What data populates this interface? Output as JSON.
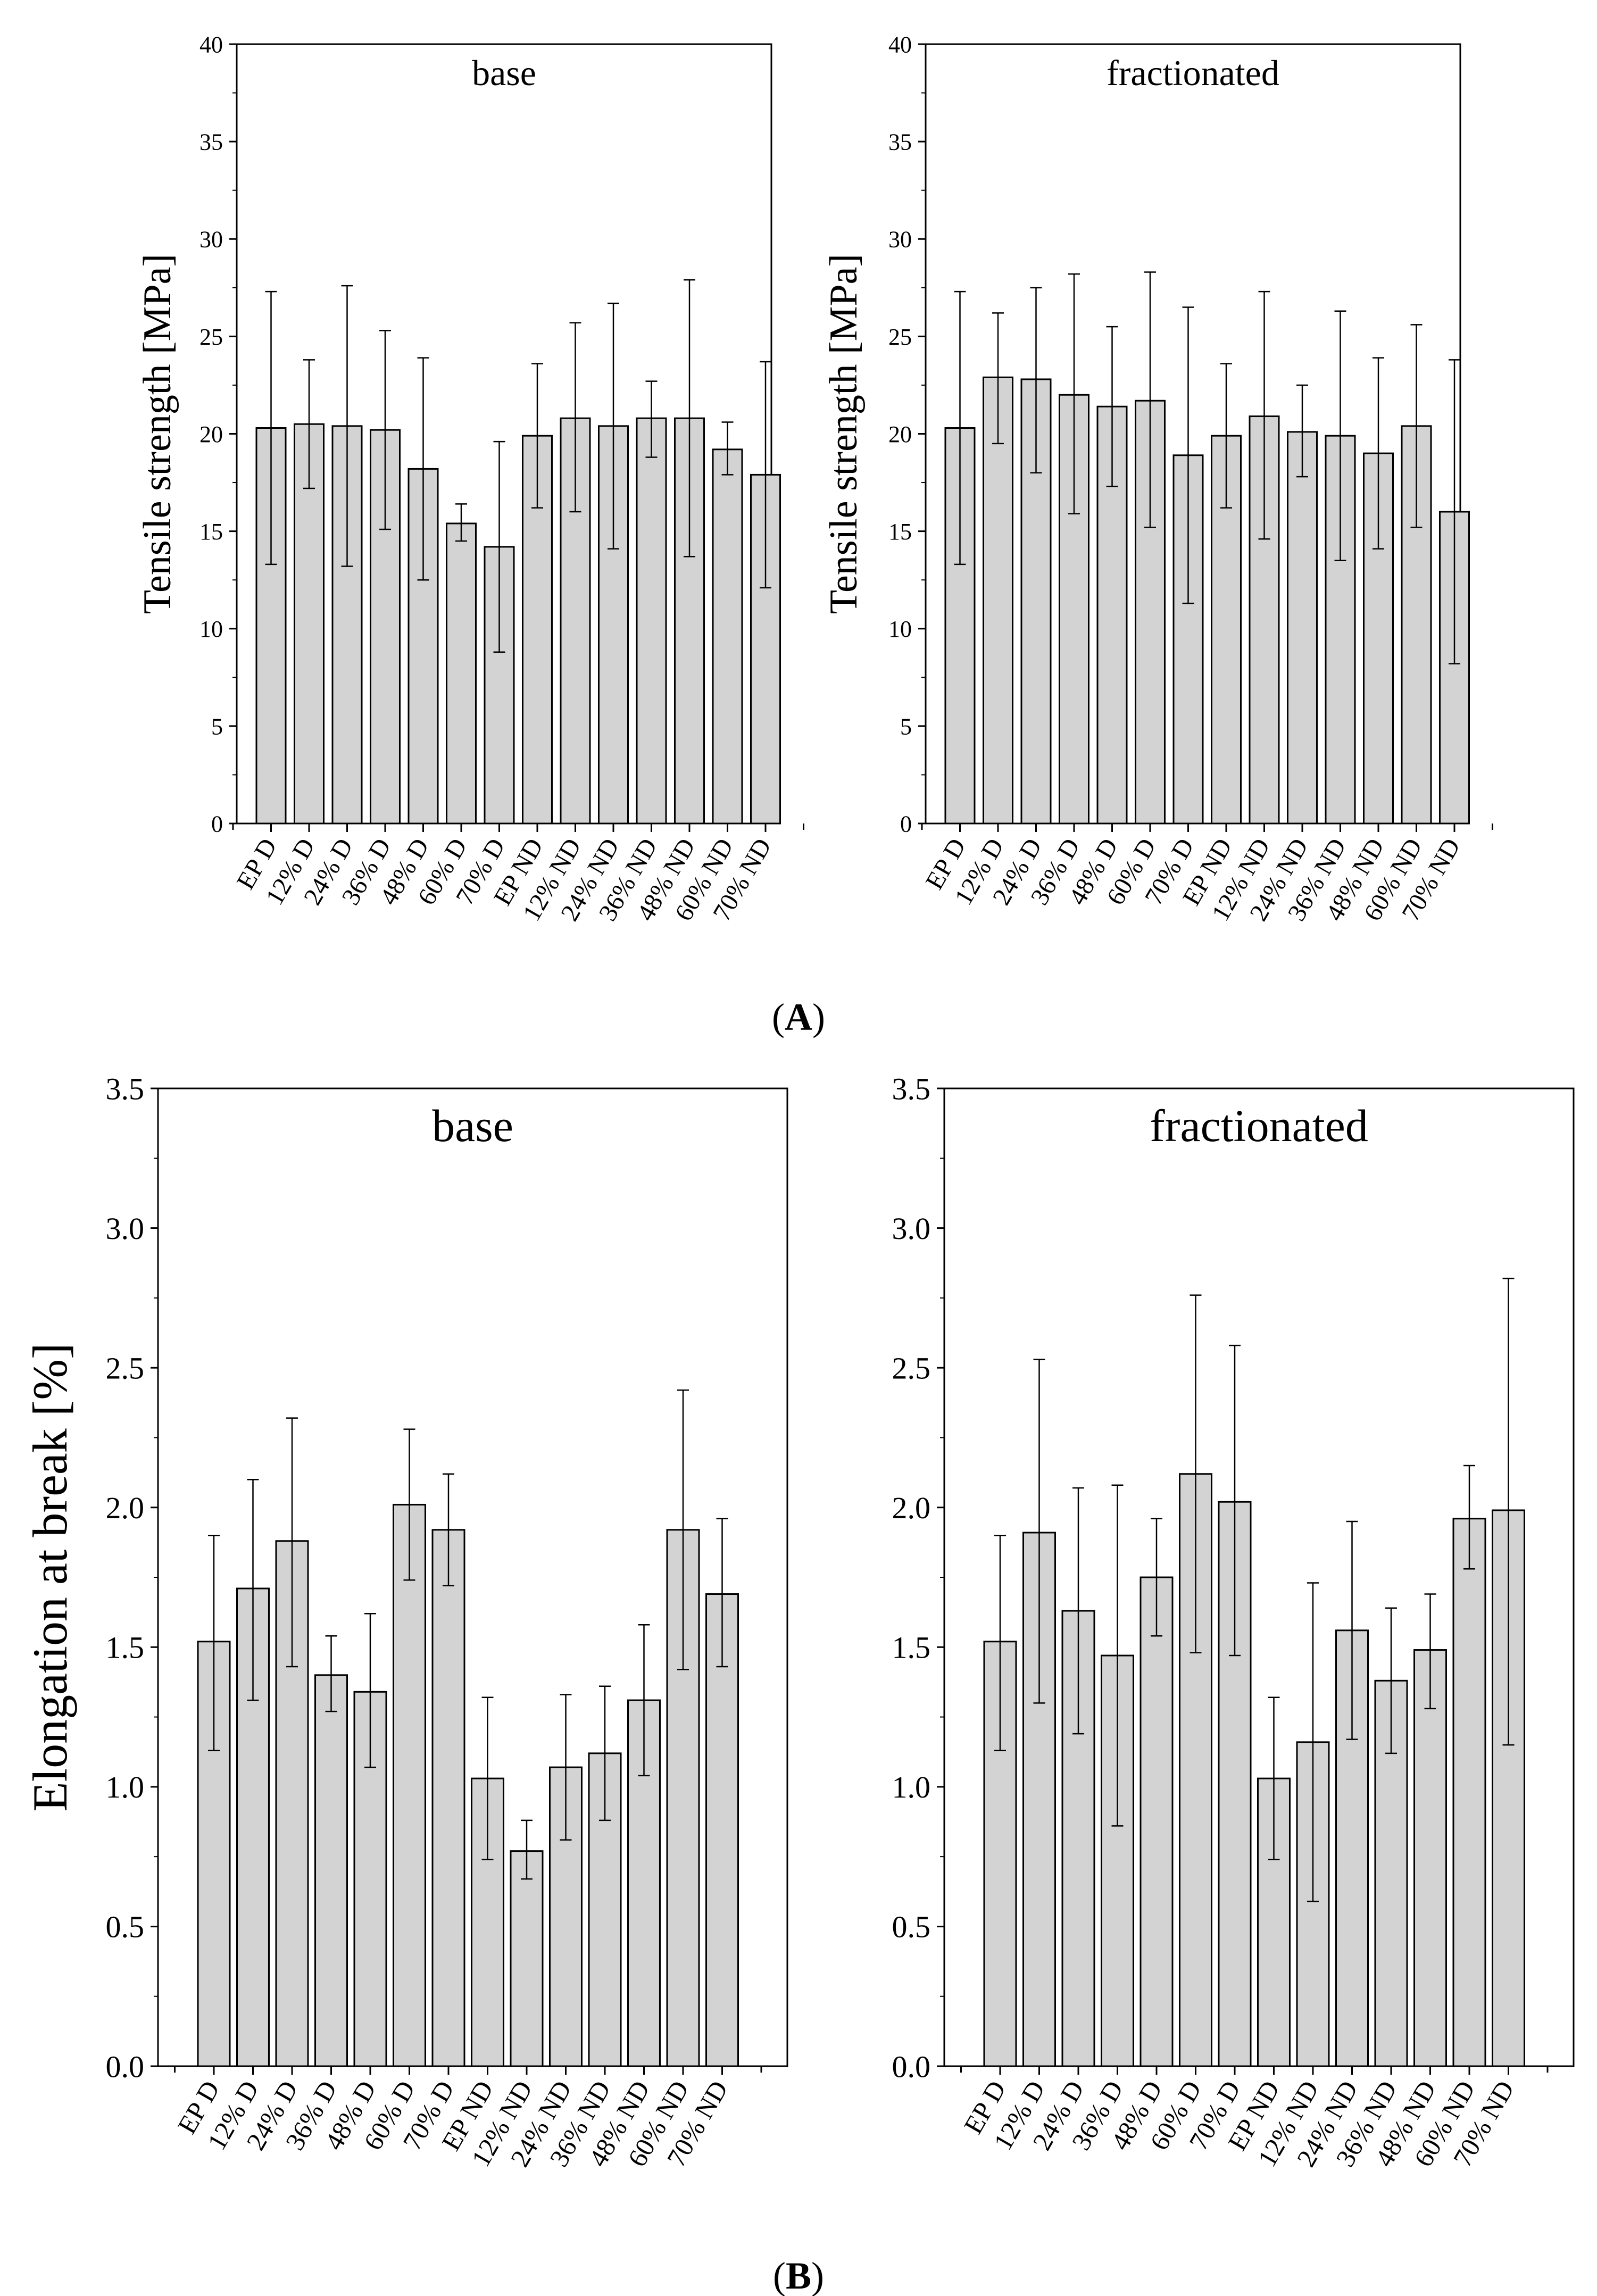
{
  "panel_labels": [
    "A",
    "B"
  ],
  "chart_data": [
    {
      "type": "bar",
      "title": "base",
      "ylabel": "Tensile strength [MPa]",
      "xlabel": "",
      "ylim": [
        0,
        40
      ],
      "yticks": [
        "0",
        "5",
        "10",
        "15",
        "20",
        "25",
        "30",
        "35",
        "40"
      ],
      "categories": [
        "EP D",
        "12% D",
        "24% D",
        "36% D",
        "48% D",
        "60% D",
        "70% D",
        "EP ND",
        "12% ND",
        "24% ND",
        "36% ND",
        "48% ND",
        "60% ND",
        "70% ND"
      ],
      "values": [
        20.3,
        20.5,
        20.4,
        20.2,
        18.2,
        15.4,
        14.2,
        19.9,
        20.8,
        20.4,
        20.8,
        20.8,
        19.2,
        17.9
      ],
      "err_high": [
        27.3,
        23.8,
        27.6,
        25.3,
        23.9,
        16.4,
        19.6,
        23.6,
        25.7,
        26.7,
        22.7,
        27.9,
        20.6,
        23.7
      ],
      "err_low": [
        13.3,
        17.2,
        13.2,
        15.1,
        12.5,
        14.5,
        8.8,
        16.2,
        16.0,
        14.1,
        18.8,
        13.7,
        17.9,
        12.1
      ],
      "bar_color": "#d3d3d3",
      "grid": false
    },
    {
      "type": "bar",
      "title": "fractionated",
      "ylabel": "Tensile strength [MPa]",
      "xlabel": "",
      "ylim": [
        0,
        40
      ],
      "yticks": [
        "0",
        "5",
        "10",
        "15",
        "20",
        "25",
        "30",
        "35",
        "40"
      ],
      "categories": [
        "EP D",
        "12% D",
        "24% D",
        "36% D",
        "48% D",
        "60% D",
        "70% D",
        "EP ND",
        "12% ND",
        "24% ND",
        "36% ND",
        "48% ND",
        "60% ND",
        "70% ND"
      ],
      "values": [
        20.3,
        22.9,
        22.8,
        22.0,
        21.4,
        21.7,
        18.9,
        19.9,
        20.9,
        20.1,
        19.9,
        19.0,
        20.4,
        16.0
      ],
      "err_high": [
        27.3,
        26.2,
        27.5,
        28.2,
        25.5,
        28.3,
        26.5,
        23.6,
        27.3,
        22.5,
        26.3,
        23.9,
        25.6,
        23.8
      ],
      "err_low": [
        13.3,
        19.5,
        18.0,
        15.9,
        17.3,
        15.2,
        11.3,
        16.2,
        14.6,
        17.8,
        13.5,
        14.1,
        15.2,
        8.2
      ],
      "bar_color": "#d3d3d3",
      "grid": false
    },
    {
      "type": "bar",
      "title": "base",
      "ylabel": "Elongation at break [%]",
      "xlabel": "",
      "ylim": [
        0,
        3.5
      ],
      "yticks": [
        "0.0",
        "0.5",
        "1.0",
        "1.5",
        "2.0",
        "2.5",
        "3.0",
        "3.5"
      ],
      "categories": [
        "EP D",
        "12% D",
        "24% D",
        "36% D",
        "48% D",
        "60% D",
        "70% D",
        "EP ND",
        "12% ND",
        "24% ND",
        "36% ND",
        "48% ND",
        "60% ND",
        "70% ND"
      ],
      "values": [
        1.52,
        1.71,
        1.88,
        1.4,
        1.34,
        2.01,
        1.92,
        1.03,
        0.77,
        1.07,
        1.12,
        1.31,
        1.92,
        1.69
      ],
      "err_high": [
        1.9,
        2.1,
        2.32,
        1.54,
        1.62,
        2.28,
        2.12,
        1.32,
        0.88,
        1.33,
        1.36,
        1.58,
        2.42,
        1.96
      ],
      "err_low": [
        1.13,
        1.31,
        1.43,
        1.27,
        1.07,
        1.74,
        1.72,
        0.74,
        0.67,
        0.81,
        0.88,
        1.04,
        1.42,
        1.43
      ],
      "bar_color": "#d3d3d3",
      "grid": false
    },
    {
      "type": "bar",
      "title": "fractionated",
      "ylabel": "",
      "xlabel": "",
      "ylim": [
        0,
        3.5
      ],
      "yticks": [
        "0.0",
        "0.5",
        "1.0",
        "1.5",
        "2.0",
        "2.5",
        "3.0",
        "3.5"
      ],
      "categories": [
        "EP D",
        "12% D",
        "24% D",
        "36% D",
        "48% D",
        "60% D",
        "70% D",
        "EP ND",
        "12% ND",
        "24% ND",
        "36% ND",
        "48% ND",
        "60% ND",
        "70% ND"
      ],
      "values": [
        1.52,
        1.91,
        1.63,
        1.47,
        1.75,
        2.12,
        2.02,
        1.03,
        1.16,
        1.56,
        1.38,
        1.49,
        1.96,
        1.99
      ],
      "err_high": [
        1.9,
        2.53,
        2.07,
        2.08,
        1.96,
        2.76,
        2.58,
        1.32,
        1.73,
        1.95,
        1.64,
        1.69,
        2.15,
        2.82
      ],
      "err_low": [
        1.13,
        1.3,
        1.19,
        0.86,
        1.54,
        1.48,
        1.47,
        0.74,
        0.59,
        1.17,
        1.12,
        1.28,
        1.78,
        1.15
      ],
      "bar_color": "#d3d3d3",
      "grid": false
    }
  ]
}
